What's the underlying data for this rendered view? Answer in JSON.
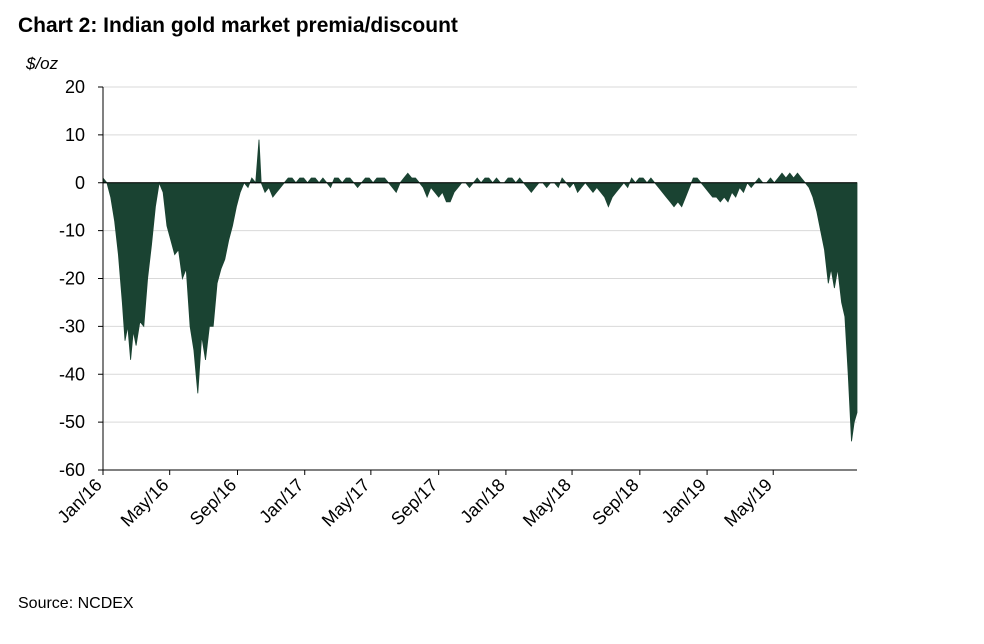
{
  "title": "Chart 2: Indian gold market premia/discount",
  "source": "Source: NCDEX",
  "chart_data": {
    "type": "area",
    "title": "Chart 2: Indian gold market premia/discount",
    "ylabel": "$/oz",
    "xlabel": "",
    "ylim": [
      -60,
      20
    ],
    "yticks": [
      20,
      10,
      0,
      -10,
      -20,
      -30,
      -40,
      -50,
      -60
    ],
    "xlim": [
      "2016-01-01",
      "2019-09-30"
    ],
    "xticks": [
      {
        "date": "2016-01-01",
        "label": "Jan/16"
      },
      {
        "date": "2016-05-01",
        "label": "May/16"
      },
      {
        "date": "2016-09-01",
        "label": "Sep/16"
      },
      {
        "date": "2017-01-01",
        "label": "Jan/17"
      },
      {
        "date": "2017-05-01",
        "label": "May/17"
      },
      {
        "date": "2017-09-01",
        "label": "Sep/17"
      },
      {
        "date": "2018-01-01",
        "label": "Jan/18"
      },
      {
        "date": "2018-05-01",
        "label": "May/18"
      },
      {
        "date": "2018-09-01",
        "label": "Sep/18"
      },
      {
        "date": "2019-01-01",
        "label": "Jan/19"
      },
      {
        "date": "2019-05-01",
        "label": "May/19"
      }
    ],
    "grid": true,
    "color": "#1a4332",
    "series": [
      {
        "points": [
          [
            "2016-01-01",
            1
          ],
          [
            "2016-01-08",
            0
          ],
          [
            "2016-01-15",
            -3
          ],
          [
            "2016-01-22",
            -8
          ],
          [
            "2016-01-29",
            -15
          ],
          [
            "2016-02-05",
            -25
          ],
          [
            "2016-02-10",
            -33
          ],
          [
            "2016-02-15",
            -30
          ],
          [
            "2016-02-20",
            -37
          ],
          [
            "2016-02-25",
            -31
          ],
          [
            "2016-03-01",
            -34
          ],
          [
            "2016-03-08",
            -29
          ],
          [
            "2016-03-15",
            -30
          ],
          [
            "2016-03-22",
            -20
          ],
          [
            "2016-03-29",
            -13
          ],
          [
            "2016-04-05",
            -5
          ],
          [
            "2016-04-12",
            0
          ],
          [
            "2016-04-19",
            -2
          ],
          [
            "2016-04-26",
            -9
          ],
          [
            "2016-05-03",
            -12
          ],
          [
            "2016-05-10",
            -15
          ],
          [
            "2016-05-17",
            -14
          ],
          [
            "2016-05-24",
            -20
          ],
          [
            "2016-05-31",
            -18
          ],
          [
            "2016-06-07",
            -30
          ],
          [
            "2016-06-14",
            -35
          ],
          [
            "2016-06-21",
            -44
          ],
          [
            "2016-06-28",
            -32
          ],
          [
            "2016-07-05",
            -37
          ],
          [
            "2016-07-12",
            -30
          ],
          [
            "2016-07-19",
            -30
          ],
          [
            "2016-07-26",
            -21
          ],
          [
            "2016-08-02",
            -18
          ],
          [
            "2016-08-09",
            -16
          ],
          [
            "2016-08-16",
            -12
          ],
          [
            "2016-08-23",
            -9
          ],
          [
            "2016-08-30",
            -5
          ],
          [
            "2016-09-06",
            -2
          ],
          [
            "2016-09-13",
            0
          ],
          [
            "2016-09-20",
            -1
          ],
          [
            "2016-09-27",
            1
          ],
          [
            "2016-10-04",
            0
          ],
          [
            "2016-10-10",
            9
          ],
          [
            "2016-10-14",
            0
          ],
          [
            "2016-10-21",
            -2
          ],
          [
            "2016-10-28",
            -1
          ],
          [
            "2016-11-04",
            -3
          ],
          [
            "2016-11-11",
            -2
          ],
          [
            "2016-11-18",
            -1
          ],
          [
            "2016-11-25",
            0
          ],
          [
            "2016-12-02",
            1
          ],
          [
            "2016-12-09",
            1
          ],
          [
            "2016-12-16",
            0
          ],
          [
            "2016-12-23",
            1
          ],
          [
            "2016-12-30",
            1
          ],
          [
            "2017-01-06",
            0
          ],
          [
            "2017-01-13",
            1
          ],
          [
            "2017-01-20",
            1
          ],
          [
            "2017-01-27",
            0
          ],
          [
            "2017-02-03",
            1
          ],
          [
            "2017-02-10",
            0
          ],
          [
            "2017-02-17",
            -1
          ],
          [
            "2017-02-24",
            1
          ],
          [
            "2017-03-03",
            1
          ],
          [
            "2017-03-10",
            0
          ],
          [
            "2017-03-17",
            1
          ],
          [
            "2017-03-24",
            1
          ],
          [
            "2017-03-31",
            0
          ],
          [
            "2017-04-07",
            -1
          ],
          [
            "2017-04-14",
            0
          ],
          [
            "2017-04-21",
            1
          ],
          [
            "2017-04-28",
            1
          ],
          [
            "2017-05-05",
            0
          ],
          [
            "2017-05-12",
            1
          ],
          [
            "2017-05-19",
            1
          ],
          [
            "2017-05-26",
            1
          ],
          [
            "2017-06-02",
            0
          ],
          [
            "2017-06-09",
            -1
          ],
          [
            "2017-06-16",
            -2
          ],
          [
            "2017-06-23",
            0
          ],
          [
            "2017-06-30",
            1
          ],
          [
            "2017-07-07",
            2
          ],
          [
            "2017-07-14",
            1
          ],
          [
            "2017-07-21",
            1
          ],
          [
            "2017-07-28",
            0
          ],
          [
            "2017-08-04",
            -1
          ],
          [
            "2017-08-11",
            -3
          ],
          [
            "2017-08-18",
            -1
          ],
          [
            "2017-08-25",
            -2
          ],
          [
            "2017-09-01",
            -3
          ],
          [
            "2017-09-08",
            -2
          ],
          [
            "2017-09-15",
            -4
          ],
          [
            "2017-09-22",
            -4
          ],
          [
            "2017-09-29",
            -2
          ],
          [
            "2017-10-06",
            -1
          ],
          [
            "2017-10-13",
            0
          ],
          [
            "2017-10-20",
            0
          ],
          [
            "2017-10-27",
            -1
          ],
          [
            "2017-11-03",
            0
          ],
          [
            "2017-11-10",
            1
          ],
          [
            "2017-11-17",
            0
          ],
          [
            "2017-11-24",
            1
          ],
          [
            "2017-12-01",
            1
          ],
          [
            "2017-12-08",
            0
          ],
          [
            "2017-12-15",
            1
          ],
          [
            "2017-12-22",
            0
          ],
          [
            "2017-12-29",
            0
          ],
          [
            "2018-01-05",
            1
          ],
          [
            "2018-01-12",
            1
          ],
          [
            "2018-01-19",
            0
          ],
          [
            "2018-01-26",
            1
          ],
          [
            "2018-02-02",
            0
          ],
          [
            "2018-02-09",
            -1
          ],
          [
            "2018-02-16",
            -2
          ],
          [
            "2018-02-23",
            -1
          ],
          [
            "2018-03-02",
            0
          ],
          [
            "2018-03-09",
            0
          ],
          [
            "2018-03-16",
            -1
          ],
          [
            "2018-03-23",
            0
          ],
          [
            "2018-03-30",
            0
          ],
          [
            "2018-04-06",
            -1
          ],
          [
            "2018-04-13",
            1
          ],
          [
            "2018-04-20",
            0
          ],
          [
            "2018-04-27",
            -1
          ],
          [
            "2018-05-04",
            0
          ],
          [
            "2018-05-11",
            -2
          ],
          [
            "2018-05-18",
            -1
          ],
          [
            "2018-05-25",
            0
          ],
          [
            "2018-06-01",
            -1
          ],
          [
            "2018-06-08",
            -2
          ],
          [
            "2018-06-15",
            -1
          ],
          [
            "2018-06-22",
            -2
          ],
          [
            "2018-06-29",
            -3
          ],
          [
            "2018-07-06",
            -5
          ],
          [
            "2018-07-13",
            -3
          ],
          [
            "2018-07-20",
            -2
          ],
          [
            "2018-07-27",
            -1
          ],
          [
            "2018-08-03",
            0
          ],
          [
            "2018-08-10",
            -1
          ],
          [
            "2018-08-17",
            1
          ],
          [
            "2018-08-24",
            0
          ],
          [
            "2018-08-31",
            1
          ],
          [
            "2018-09-07",
            1
          ],
          [
            "2018-09-14",
            0
          ],
          [
            "2018-09-21",
            1
          ],
          [
            "2018-09-28",
            0
          ],
          [
            "2018-10-05",
            -1
          ],
          [
            "2018-10-12",
            -2
          ],
          [
            "2018-10-19",
            -3
          ],
          [
            "2018-10-26",
            -4
          ],
          [
            "2018-11-02",
            -5
          ],
          [
            "2018-11-09",
            -4
          ],
          [
            "2018-11-16",
            -5
          ],
          [
            "2018-11-23",
            -3
          ],
          [
            "2018-11-30",
            -1
          ],
          [
            "2018-12-07",
            1
          ],
          [
            "2018-12-14",
            1
          ],
          [
            "2018-12-21",
            0
          ],
          [
            "2018-12-28",
            -1
          ],
          [
            "2019-01-04",
            -2
          ],
          [
            "2019-01-11",
            -3
          ],
          [
            "2019-01-18",
            -3
          ],
          [
            "2019-01-25",
            -4
          ],
          [
            "2019-02-01",
            -3
          ],
          [
            "2019-02-08",
            -4
          ],
          [
            "2019-02-15",
            -2
          ],
          [
            "2019-02-22",
            -3
          ],
          [
            "2019-03-01",
            -1
          ],
          [
            "2019-03-08",
            -2
          ],
          [
            "2019-03-15",
            0
          ],
          [
            "2019-03-22",
            -1
          ],
          [
            "2019-03-29",
            0
          ],
          [
            "2019-04-05",
            1
          ],
          [
            "2019-04-12",
            0
          ],
          [
            "2019-04-19",
            0
          ],
          [
            "2019-04-26",
            1
          ],
          [
            "2019-05-03",
            0
          ],
          [
            "2019-05-10",
            1
          ],
          [
            "2019-05-17",
            2
          ],
          [
            "2019-05-24",
            1
          ],
          [
            "2019-05-31",
            2
          ],
          [
            "2019-06-07",
            1
          ],
          [
            "2019-06-14",
            2
          ],
          [
            "2019-06-21",
            1
          ],
          [
            "2019-06-28",
            0
          ],
          [
            "2019-07-05",
            -1
          ],
          [
            "2019-07-12",
            -3
          ],
          [
            "2019-07-19",
            -6
          ],
          [
            "2019-07-26",
            -10
          ],
          [
            "2019-08-02",
            -14
          ],
          [
            "2019-08-09",
            -21
          ],
          [
            "2019-08-14",
            -18
          ],
          [
            "2019-08-20",
            -22
          ],
          [
            "2019-08-26",
            -18
          ],
          [
            "2019-09-02",
            -25
          ],
          [
            "2019-09-08",
            -28
          ],
          [
            "2019-09-14",
            -40
          ],
          [
            "2019-09-20",
            -54
          ],
          [
            "2019-09-25",
            -50
          ],
          [
            "2019-09-30",
            -48
          ]
        ]
      }
    ]
  }
}
